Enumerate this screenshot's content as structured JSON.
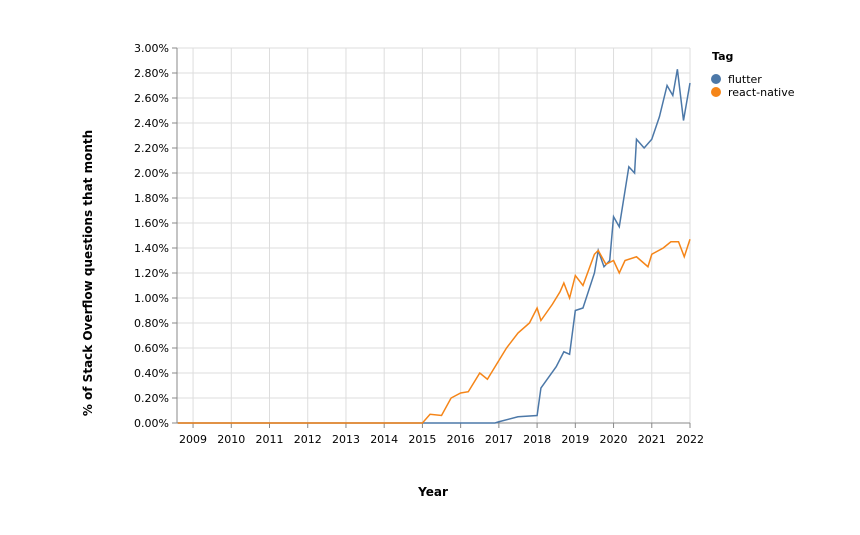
{
  "chart_data": {
    "type": "line",
    "x_label": "Year",
    "y_label": "% of Stack Overflow questions that month",
    "legend_title": "Tag",
    "legend_position": "top-right",
    "grid": true,
    "xlim": [
      2008.58,
      2022.0
    ],
    "xticks": [
      2009,
      2010,
      2011,
      2012,
      2013,
      2014,
      2015,
      2016,
      2017,
      2018,
      2019,
      2020,
      2021,
      2022
    ],
    "ylim": [
      0,
      3.0
    ],
    "yticks": [
      {
        "value": 0,
        "label": "0.00%"
      },
      {
        "value": 0.2,
        "label": "0.20%"
      },
      {
        "value": 0.4,
        "label": "0.40%"
      },
      {
        "value": 0.6,
        "label": "0.60%"
      },
      {
        "value": 0.8,
        "label": "0.80%"
      },
      {
        "value": 1.0,
        "label": "1.00%"
      },
      {
        "value": 1.2,
        "label": "1.20%"
      },
      {
        "value": 1.4,
        "label": "1.40%"
      },
      {
        "value": 1.6,
        "label": "1.60%"
      },
      {
        "value": 1.8,
        "label": "1.80%"
      },
      {
        "value": 2.0,
        "label": "2.00%"
      },
      {
        "value": 2.2,
        "label": "2.20%"
      },
      {
        "value": 2.4,
        "label": "2.40%"
      },
      {
        "value": 2.6,
        "label": "2.60%"
      },
      {
        "value": 2.8,
        "label": "2.80%"
      },
      {
        "value": 3.0,
        "label": "3.00%"
      }
    ],
    "series": [
      {
        "name": "flutter",
        "color": "#4c78a8",
        "x": [
          2008.6,
          2016.9,
          2017.0,
          2017.5,
          2018.0,
          2018.1,
          2018.5,
          2018.7,
          2018.85,
          2019.0,
          2019.2,
          2019.5,
          2019.6,
          2019.75,
          2019.9,
          2020.0,
          2020.15,
          2020.4,
          2020.55,
          2020.6,
          2020.8,
          2021.0,
          2021.2,
          2021.4,
          2021.55,
          2021.67,
          2021.83,
          2022.0
        ],
        "values": [
          0,
          0,
          0.01,
          0.05,
          0.06,
          0.28,
          0.45,
          0.57,
          0.55,
          0.9,
          0.92,
          1.2,
          1.38,
          1.25,
          1.3,
          1.65,
          1.57,
          2.05,
          2.0,
          2.27,
          2.2,
          2.27,
          2.45,
          2.7,
          2.62,
          2.83,
          2.42,
          2.72
        ]
      },
      {
        "name": "react-native",
        "color": "#f58518",
        "x": [
          2008.6,
          2015.0,
          2015.2,
          2015.5,
          2015.75,
          2016.0,
          2016.2,
          2016.5,
          2016.7,
          2016.9,
          2017.2,
          2017.5,
          2017.8,
          2018.0,
          2018.1,
          2018.4,
          2018.6,
          2018.7,
          2018.85,
          2019.0,
          2019.2,
          2019.5,
          2019.6,
          2019.8,
          2020.0,
          2020.15,
          2020.3,
          2020.6,
          2020.9,
          2021.0,
          2021.3,
          2021.5,
          2021.7,
          2021.85,
          2022.0
        ],
        "values": [
          0,
          0,
          0.07,
          0.06,
          0.2,
          0.24,
          0.25,
          0.4,
          0.35,
          0.45,
          0.6,
          0.72,
          0.8,
          0.92,
          0.82,
          0.95,
          1.05,
          1.12,
          1.0,
          1.18,
          1.1,
          1.35,
          1.38,
          1.27,
          1.3,
          1.2,
          1.3,
          1.33,
          1.25,
          1.35,
          1.4,
          1.45,
          1.45,
          1.33,
          1.47
        ]
      }
    ]
  }
}
